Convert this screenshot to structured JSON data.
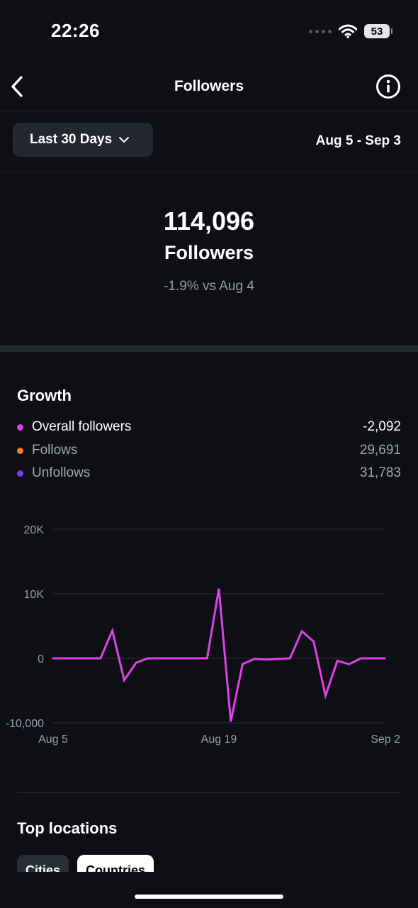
{
  "status_bar": {
    "time": "22:26",
    "battery": "53"
  },
  "nav": {
    "title": "Followers",
    "back_icon": "chevron-left-icon",
    "info_icon": "info-circle-icon"
  },
  "filter": {
    "range_label": "Last 30 Days",
    "date_range": "Aug 5 - Sep 3"
  },
  "summary": {
    "count": "114,096",
    "label": "Followers",
    "change": "-1.9% vs Aug 4"
  },
  "growth": {
    "title": "Growth",
    "legend": [
      {
        "label": "Overall followers",
        "value": "-2,092",
        "color": "#e040e8"
      },
      {
        "label": "Follows",
        "value": "29,691",
        "color": "#f08030"
      },
      {
        "label": "Unfollows",
        "value": "31,783",
        "color": "#7a40f0"
      }
    ]
  },
  "chart_data": {
    "type": "line",
    "series": [
      {
        "name": "Overall followers",
        "color": "#e040e8",
        "values": [
          0,
          0,
          0,
          0,
          0,
          4300,
          -3400,
          -700,
          0,
          0,
          0,
          0,
          0,
          0,
          10800,
          -9800,
          -900,
          -100,
          -200,
          -100,
          0,
          4200,
          2600,
          -5800,
          -400,
          -900,
          0,
          0,
          0
        ]
      }
    ],
    "x": [
      "Aug 5",
      "Aug 6",
      "Aug 7",
      "Aug 8",
      "Aug 9",
      "Aug 10",
      "Aug 11",
      "Aug 12",
      "Aug 13",
      "Aug 14",
      "Aug 15",
      "Aug 16",
      "Aug 17",
      "Aug 18",
      "Aug 19",
      "Aug 20",
      "Aug 21",
      "Aug 22",
      "Aug 23",
      "Aug 24",
      "Aug 25",
      "Aug 26",
      "Aug 27",
      "Aug 28",
      "Aug 29",
      "Aug 30",
      "Aug 31",
      "Sep 1",
      "Sep 2"
    ],
    "xticks": [
      "Aug 5",
      "Aug 19",
      "Sep 2"
    ],
    "yticks": [
      {
        "value": 20000,
        "label": "20K"
      },
      {
        "value": 10000,
        "label": "10K"
      },
      {
        "value": 0,
        "label": "0"
      },
      {
        "value": -10000,
        "label": "-10,000"
      }
    ],
    "ylim": [
      -10000,
      20000
    ],
    "grid": true
  },
  "locations": {
    "title": "Top locations",
    "tabs": [
      {
        "label": "Cities",
        "selected": false
      },
      {
        "label": "Countries",
        "selected": true
      }
    ]
  }
}
